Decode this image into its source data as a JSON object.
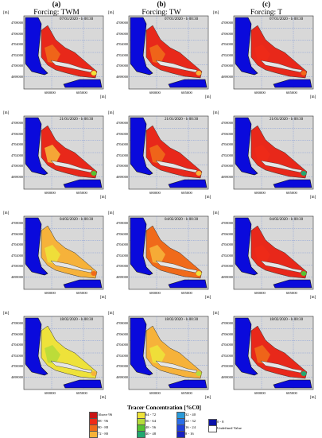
{
  "columns": [
    {
      "letter": "(a)",
      "forcing": "Forcing: TWM"
    },
    {
      "letter": "(b)",
      "forcing": "Forcing: TW"
    },
    {
      "letter": "(c)",
      "forcing": "Forcing: T"
    }
  ],
  "rows": [
    {
      "date": "07/01/2020 - h 00:30"
    },
    {
      "date": "21/01/2020 - h 00:30"
    },
    {
      "date": "04/02/2020 - h 00:30"
    },
    {
      "date": "18/02/2020 - h 00:30"
    }
  ],
  "axes": {
    "y_unit": "[m]",
    "x_unit": "[m]",
    "y_ticks": [
      "4708000",
      "4706000",
      "4704000",
      "4702000",
      "4700000",
      "4698000"
    ],
    "x_ticks": [
      "680000",
      "685000"
    ]
  },
  "legend": {
    "title": "Tracer Concentration [%C0]",
    "items": [
      {
        "label": "Above 96",
        "color": "#c81414"
      },
      {
        "label": "88 - 96",
        "color": "#ee2a18"
      },
      {
        "label": "80 - 88",
        "color": "#f06a1a"
      },
      {
        "label": "72 - 80",
        "color": "#f6b23a"
      },
      {
        "label": "64 - 72",
        "color": "#eee23a"
      },
      {
        "label": "56 - 64",
        "color": "#b6dc3a"
      },
      {
        "label": "48 - 56",
        "color": "#56c232"
      },
      {
        "label": "40 - 48",
        "color": "#22a870"
      },
      {
        "label": "32 - 40",
        "color": "#2a9ad8"
      },
      {
        "label": "24 - 32",
        "color": "#2a6ee8"
      },
      {
        "label": "16 - 24",
        "color": "#1e40dc"
      },
      {
        "label": "8 - 16",
        "color": "#1820c0"
      },
      {
        "label": "0 - 8",
        "color": "#0a10a8"
      },
      {
        "label": "Undefined Value",
        "color": "#ffffff"
      }
    ]
  },
  "colors": {
    "land": "#0a0adc",
    "water_background": "#d8d8d8",
    "red": "#e8281a"
  }
}
